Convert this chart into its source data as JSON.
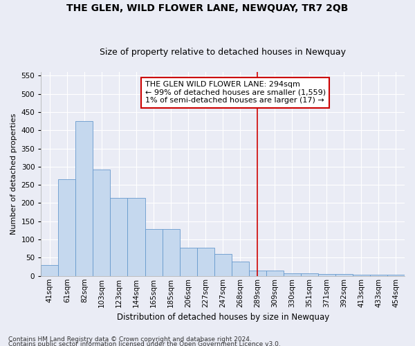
{
  "title": "THE GLEN, WILD FLOWER LANE, NEWQUAY, TR7 2QB",
  "subtitle": "Size of property relative to detached houses in Newquay",
  "xlabel": "Distribution of detached houses by size in Newquay",
  "ylabel": "Number of detached properties",
  "footer1": "Contains HM Land Registry data © Crown copyright and database right 2024.",
  "footer2": "Contains public sector information licensed under the Open Government Licence v3.0.",
  "categories": [
    "41sqm",
    "61sqm",
    "82sqm",
    "103sqm",
    "123sqm",
    "144sqm",
    "165sqm",
    "185sqm",
    "206sqm",
    "227sqm",
    "247sqm",
    "268sqm",
    "289sqm",
    "309sqm",
    "330sqm",
    "351sqm",
    "371sqm",
    "392sqm",
    "413sqm",
    "433sqm",
    "454sqm"
  ],
  "heights": [
    30,
    265,
    425,
    293,
    215,
    215,
    128,
    128,
    77,
    77,
    60,
    40,
    15,
    15,
    8,
    8,
    5,
    5,
    3,
    3,
    3
  ],
  "bar_color": "#c5d8ee",
  "bar_edge_color": "#6699cc",
  "vline_index": 12,
  "vline_color": "#cc0000",
  "annotation_text": "THE GLEN WILD FLOWER LANE: 294sqm\n← 99% of detached houses are smaller (1,559)\n1% of semi-detached houses are larger (17) →",
  "ann_box_edgecolor": "#cc0000",
  "ann_bg": "#ffffff",
  "ylim": [
    0,
    560
  ],
  "yticks": [
    0,
    50,
    100,
    150,
    200,
    250,
    300,
    350,
    400,
    450,
    500,
    550
  ],
  "bg_color": "#eaecf5",
  "grid_color": "#ffffff",
  "title_fontsize": 10,
  "subtitle_fontsize": 9,
  "tick_fontsize": 7.5,
  "ylabel_fontsize": 8,
  "xlabel_fontsize": 8.5,
  "ann_fontsize": 8,
  "footer_fontsize": 6.5
}
